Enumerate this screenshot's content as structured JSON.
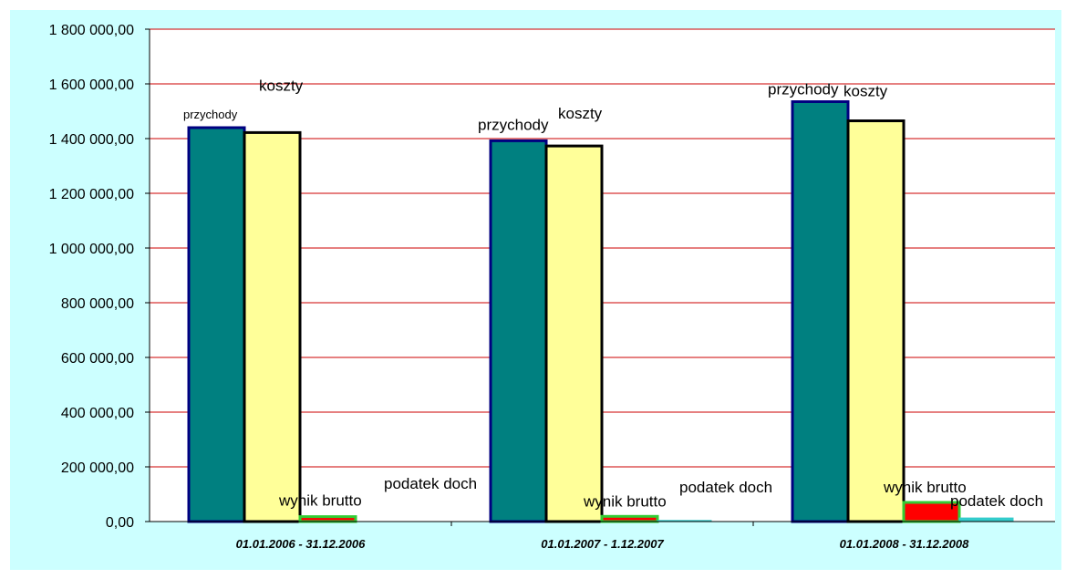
{
  "chart_data": {
    "type": "bar",
    "title": "",
    "xlabel": "",
    "ylabel": "",
    "ylim": [
      0,
      1800000
    ],
    "y_ticks": [
      "0,00",
      "200 000,00",
      "400 000,00",
      "600 000,00",
      "800 000,00",
      "1 000 000,00",
      "1 200 000,00",
      "1 400 000,00",
      "1 600 000,00",
      "1 800 000,00"
    ],
    "grid": true,
    "legend": "none",
    "categories": [
      "01.01.2006 - 31.12.2006",
      "01.01.2007 - 1.12.2007",
      "01.01.2008 - 31.12.2008"
    ],
    "series": [
      {
        "values": [
          1440000,
          1392000,
          1535000
        ],
        "labels": [
          "przychody",
          "przychody",
          "przychody"
        ],
        "fill": "#008080",
        "stroke": "#000080"
      },
      {
        "values": [
          1422000,
          1373000,
          1465000
        ],
        "labels": [
          "koszty",
          "koszty",
          "koszty"
        ],
        "fill": "#FFFF99",
        "stroke": "#000000"
      },
      {
        "values": [
          18000,
          19000,
          70000
        ],
        "labels": [
          "wynik brutto",
          "wynik brutto",
          "wynik brutto"
        ],
        "fill": "#FF0000",
        "stroke": "#33CC33"
      },
      {
        "values": [
          0,
          4000,
          13000
        ],
        "labels": [
          "podatek doch",
          "podatek doch",
          "podatek doch"
        ],
        "fill": "#33CCCC",
        "stroke": "#33CCCC"
      }
    ],
    "colors": {
      "chart_area": "#CCFFFF",
      "plot_area": "#FFFFFF",
      "gridlines": "#CC0000",
      "axis": "#000000"
    }
  }
}
